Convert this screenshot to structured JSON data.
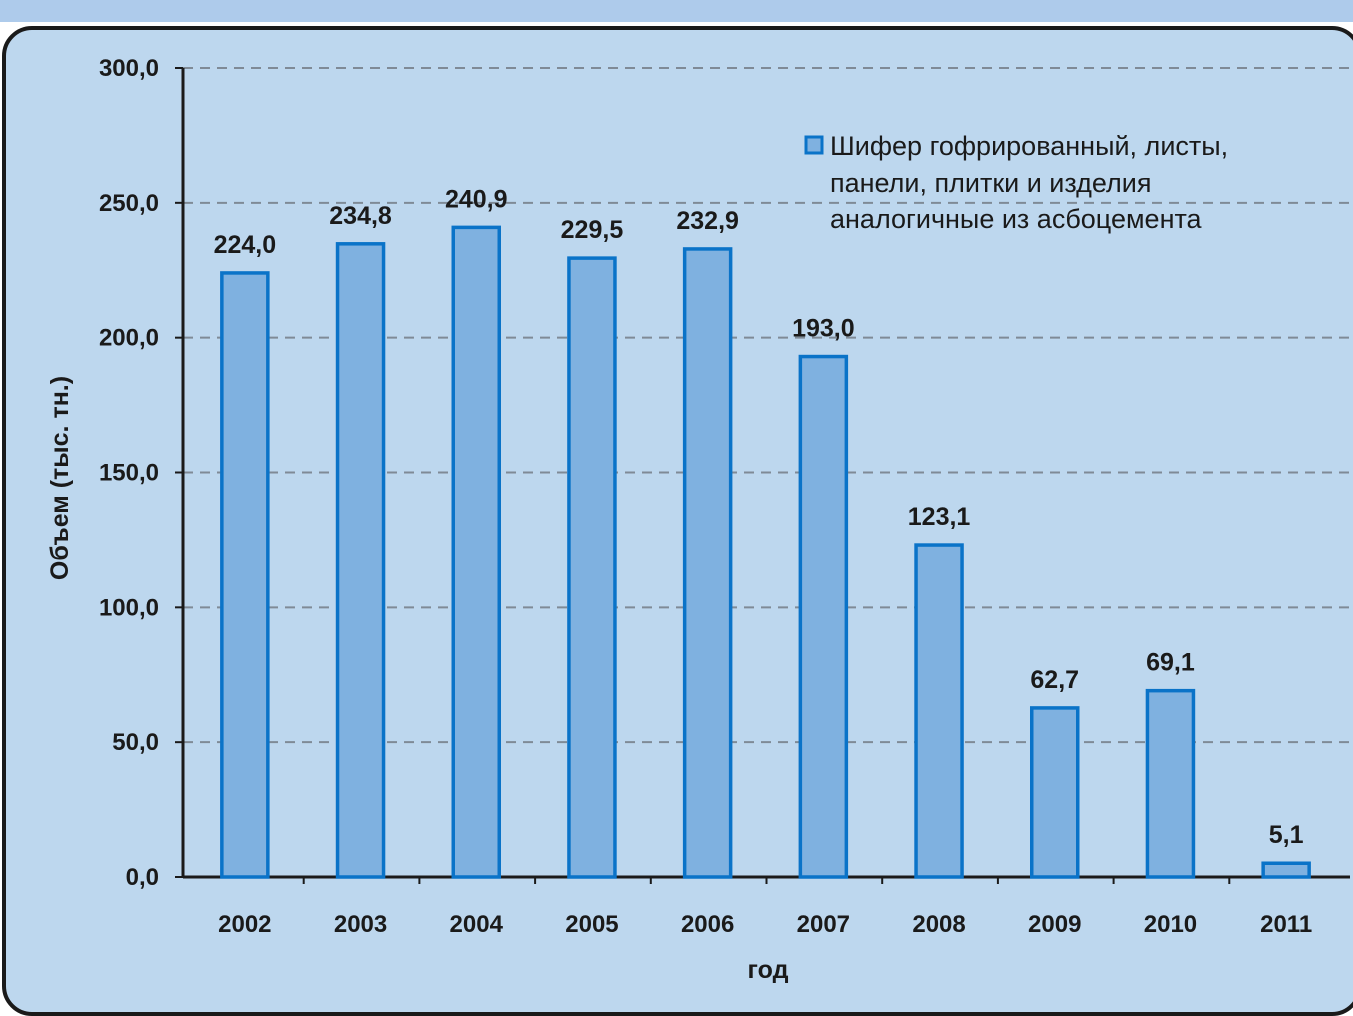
{
  "colors": {
    "background": "#bdd7ee",
    "bar_fill": "#7fb1e0",
    "bar_stroke": "#0a73c8",
    "grid": "#7f8a96",
    "axis": "#1a1a1a"
  },
  "chart_data": {
    "type": "bar",
    "categories": [
      "2002",
      "2003",
      "2004",
      "2005",
      "2006",
      "2007",
      "2008",
      "2009",
      "2010",
      "2011"
    ],
    "series": [
      {
        "name": "Шифер гофрированный, листы, панели, плитки и изделия аналогичные из асбоцемента",
        "values": [
          224.0,
          234.8,
          240.9,
          229.5,
          232.9,
          193.0,
          123.1,
          62.7,
          69.1,
          5.1
        ],
        "labels": [
          "224,0",
          "234,8",
          "240,9",
          "229,5",
          "232,9",
          "193,0",
          "123,1",
          "62,7",
          "69,1",
          "5,1"
        ]
      }
    ],
    "legend_lines": [
      "Шифер гофрированный, листы,",
      "панели, плитки и изделия",
      "аналогичные из асбоцемента"
    ],
    "xlabel": "год",
    "ylabel": "Объем (тыс. тн.)",
    "ylim": [
      0,
      300
    ],
    "yticks": [
      0,
      50,
      100,
      150,
      200,
      250,
      300
    ],
    "ytick_labels": [
      "0,0",
      "50,0",
      "100,0",
      "150,0",
      "200,0",
      "250,0",
      "300,0"
    ],
    "grid": true,
    "legend_position": "top-right"
  }
}
